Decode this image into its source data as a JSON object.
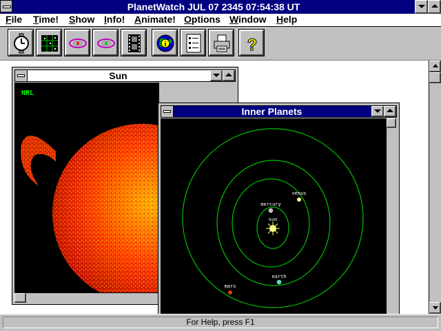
{
  "app": {
    "title": "PlanetWatch JUL 07 2345 07:54:38 UT"
  },
  "menu": [
    {
      "label": "File",
      "hot": "F",
      "rest": "ile"
    },
    {
      "label": "Time!",
      "hot": "T",
      "rest": "ime!"
    },
    {
      "label": "Show",
      "hot": "S",
      "rest": "how"
    },
    {
      "label": "Info!",
      "hot": "I",
      "rest": "nfo!"
    },
    {
      "label": "Animate!",
      "hot": "A",
      "rest": "nimate!"
    },
    {
      "label": "Options",
      "hot": "O",
      "rest": "ptions"
    },
    {
      "label": "Window",
      "hot": "W",
      "rest": "indow"
    },
    {
      "label": "Help",
      "hot": "H",
      "rest": "elp"
    }
  ],
  "toolbar": [
    {
      "icon": "stopwatch-icon"
    },
    {
      "icon": "star-chart-icon"
    },
    {
      "icon": "orbit-icon"
    },
    {
      "icon": "orbit-alt-icon"
    },
    {
      "icon": "film-icon"
    },
    {
      "icon": "info-globe-icon"
    },
    {
      "icon": "checklist-icon"
    },
    {
      "icon": "printer-icon"
    },
    {
      "icon": "help-icon"
    }
  ],
  "windows": {
    "sun": {
      "title": "Sun",
      "label": "NRL"
    },
    "inner_planets": {
      "title": "Inner Planets",
      "bodies": [
        {
          "name": "sun",
          "color": "#ffff80"
        },
        {
          "name": "mercury",
          "color": "#c0c0c0"
        },
        {
          "name": "venus",
          "color": "#ffff80"
        },
        {
          "name": "earth",
          "color": "#40e0c0"
        },
        {
          "name": "mars",
          "color": "#e04000"
        }
      ],
      "orbit_color": "#00c000"
    }
  },
  "status": {
    "text": "For Help, press F1"
  },
  "colors": {
    "titlebar": "#000080",
    "inactive_title": "#ffffff"
  }
}
